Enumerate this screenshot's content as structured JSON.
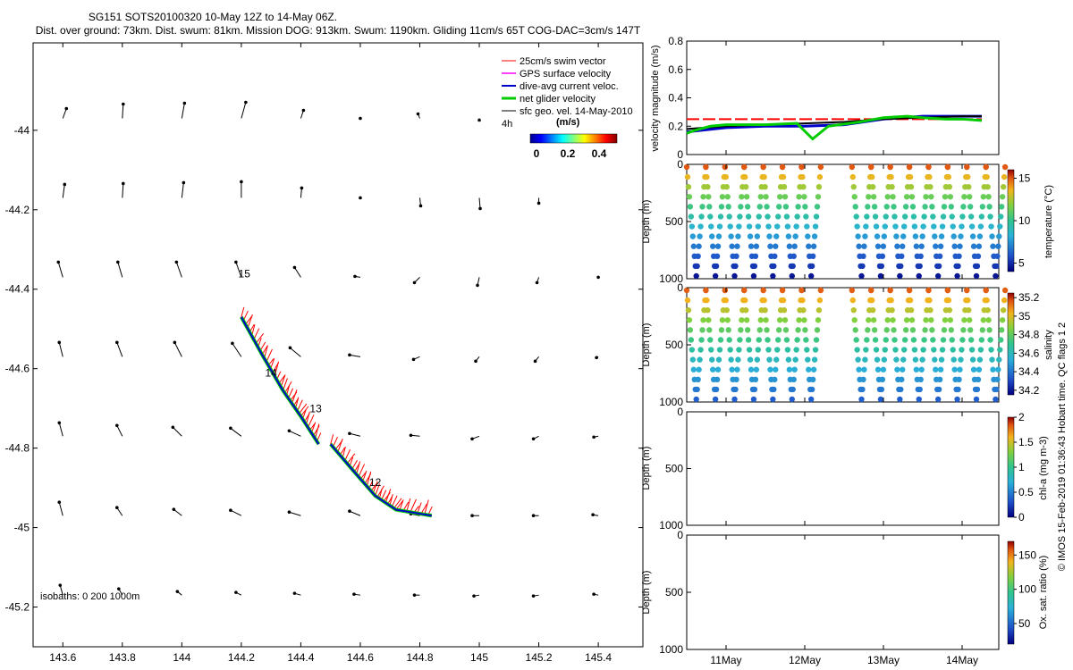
{
  "header": {
    "title_line1": "SG151 SOTS20100320 10-May 12Z to 14-May 06Z.",
    "title_line2": "Dist. over ground: 73km. Dist. swum: 81km. Mission DOG: 913km. Swum: 1190km. Gliding 11cm/s 65T COG-DAC=3cm/s 147T"
  },
  "footer": {
    "credit": "© IMOS 15-Feb-2019 01:36:43 Hobart time. QC flags 1  2"
  },
  "colors": {
    "swim": "#ff0000",
    "gps": "#ff00ff",
    "dac": "#0000cc",
    "net": "#00cc00",
    "sfc": "#000000"
  },
  "chart_data": [
    {
      "name": "map",
      "type": "scatter",
      "xlabel": "",
      "ylabel": "",
      "xlim": [
        143.5,
        145.55
      ],
      "ylim": [
        -45.3,
        -43.78
      ],
      "x_ticks": [
        143.6,
        143.8,
        144,
        144.2,
        144.4,
        144.6,
        144.8,
        145,
        145.2,
        145.4
      ],
      "x_tick_labels": [
        "143.6",
        "143.8",
        "144",
        "144.2",
        "144.4",
        "144.6",
        "144.8",
        "145",
        "145.2",
        "145.4"
      ],
      "y_ticks": [
        -44,
        -44.2,
        -44.4,
        -44.6,
        -44.8,
        -45,
        -45.2
      ],
      "y_tick_labels": [
        "-44",
        "-44.2",
        "-44.4",
        "-44.6",
        "-44.8",
        "-45",
        "-45.2"
      ],
      "legend": [
        "25cm/s swim vector",
        "GPS surface velocity",
        "dive-avg current veloc.",
        "net glider velocity",
        "sfc geo. vel. 14-May-2010"
      ],
      "legend_note": "4h",
      "colorbar_title": "(m/s)",
      "colorbar_ticks": [
        "0",
        "0.2",
        "0.4"
      ],
      "isobaths_label": "isobaths: 0    200   1000m",
      "day_labels": [
        {
          "text": "15",
          "lon": 144.19,
          "lat": -44.37
        },
        {
          "text": "14",
          "lon": 144.28,
          "lat": -44.62
        },
        {
          "text": "13",
          "lon": 144.43,
          "lat": -44.71
        },
        {
          "text": "12",
          "lon": 144.63,
          "lat": -44.895
        }
      ],
      "track_segments": [
        [
          [
            144.2,
            -44.47
          ],
          [
            144.27,
            -44.565
          ],
          [
            144.34,
            -44.655
          ],
          [
            144.4,
            -44.72
          ],
          [
            144.46,
            -44.79
          ]
        ],
        [
          [
            144.5,
            -44.79
          ],
          [
            144.58,
            -44.86
          ],
          [
            144.65,
            -44.92
          ],
          [
            144.72,
            -44.955
          ],
          [
            144.84,
            -44.97
          ]
        ]
      ],
      "current_vectors": [
        {
          "lon": 143.6,
          "lat": -43.97,
          "u": 0.2,
          "v": 0.55
        },
        {
          "lon": 143.8,
          "lat": -43.97,
          "u": 0.05,
          "v": 0.8
        },
        {
          "lon": 144,
          "lat": -43.97,
          "u": 0.15,
          "v": 0.85
        },
        {
          "lon": 144.2,
          "lat": -43.97,
          "u": 0.25,
          "v": 0.9
        },
        {
          "lon": 144.4,
          "lat": -43.97,
          "u": 0.15,
          "v": 0.45
        },
        {
          "lon": 144.6,
          "lat": -43.97,
          "u": 0,
          "v": 0
        },
        {
          "lon": 144.8,
          "lat": -43.97,
          "u": -0.1,
          "v": 0.25
        },
        {
          "lon": 145,
          "lat": -43.97,
          "u": 0,
          "v": -0.1
        },
        {
          "lon": 143.6,
          "lat": -44.17,
          "u": 0.1,
          "v": 0.75
        },
        {
          "lon": 143.8,
          "lat": -44.17,
          "u": 0.05,
          "v": 0.8
        },
        {
          "lon": 144,
          "lat": -44.17,
          "u": 0.1,
          "v": 0.85
        },
        {
          "lon": 144.2,
          "lat": -44.17,
          "u": 0,
          "v": 0.9
        },
        {
          "lon": 144.4,
          "lat": -44.17,
          "u": 0.05,
          "v": 0.55
        },
        {
          "lon": 144.6,
          "lat": -44.17,
          "u": 0,
          "v": 0
        },
        {
          "lon": 144.8,
          "lat": -44.17,
          "u": 0.05,
          "v": -0.45
        },
        {
          "lon": 145,
          "lat": -44.17,
          "u": 0.05,
          "v": -0.6
        },
        {
          "lon": 145.2,
          "lat": -44.17,
          "u": 0,
          "v": -0.3
        },
        {
          "lon": 143.6,
          "lat": -44.37,
          "u": -0.25,
          "v": 0.85
        },
        {
          "lon": 143.8,
          "lat": -44.37,
          "u": -0.25,
          "v": 0.85
        },
        {
          "lon": 144,
          "lat": -44.37,
          "u": -0.3,
          "v": 0.85
        },
        {
          "lon": 144.2,
          "lat": -44.37,
          "u": -0.3,
          "v": 0.85
        },
        {
          "lon": 144.4,
          "lat": -44.37,
          "u": -0.35,
          "v": 0.55
        },
        {
          "lon": 144.6,
          "lat": -44.37,
          "u": -0.3,
          "v": 0.05
        },
        {
          "lon": 144.8,
          "lat": -44.37,
          "u": -0.3,
          "v": -0.3
        },
        {
          "lon": 145,
          "lat": -44.37,
          "u": -0.1,
          "v": -0.45
        },
        {
          "lon": 145.2,
          "lat": -44.37,
          "u": -0.1,
          "v": -0.3
        },
        {
          "lon": 145.4,
          "lat": -44.37,
          "u": 0,
          "v": 0
        },
        {
          "lon": 143.6,
          "lat": -44.57,
          "u": -0.2,
          "v": 0.8
        },
        {
          "lon": 143.8,
          "lat": -44.57,
          "u": -0.3,
          "v": 0.8
        },
        {
          "lon": 144,
          "lat": -44.57,
          "u": -0.4,
          "v": 0.8
        },
        {
          "lon": 144.2,
          "lat": -44.57,
          "u": -0.5,
          "v": 0.75
        },
        {
          "lon": 144.4,
          "lat": -44.57,
          "u": -0.6,
          "v": 0.5
        },
        {
          "lon": 144.6,
          "lat": -44.57,
          "u": -0.6,
          "v": 0.1
        },
        {
          "lon": 144.8,
          "lat": -44.57,
          "u": -0.35,
          "v": -0.15
        },
        {
          "lon": 145,
          "lat": -44.57,
          "u": -0.2,
          "v": -0.25
        },
        {
          "lon": 145.2,
          "lat": -44.57,
          "u": -0.2,
          "v": -0.25
        },
        {
          "lon": 145.4,
          "lat": -44.57,
          "u": -0.1,
          "v": -0.05
        },
        {
          "lon": 143.6,
          "lat": -44.77,
          "u": -0.2,
          "v": 0.75
        },
        {
          "lon": 143.8,
          "lat": -44.77,
          "u": -0.3,
          "v": 0.6
        },
        {
          "lon": 144,
          "lat": -44.77,
          "u": -0.5,
          "v": 0.5
        },
        {
          "lon": 144.2,
          "lat": -44.77,
          "u": -0.6,
          "v": 0.45
        },
        {
          "lon": 144.4,
          "lat": -44.77,
          "u": -0.65,
          "v": 0.3
        },
        {
          "lon": 144.6,
          "lat": -44.77,
          "u": -0.6,
          "v": 0.15
        },
        {
          "lon": 144.8,
          "lat": -44.77,
          "u": -0.5,
          "v": 0.05
        },
        {
          "lon": 145,
          "lat": -44.77,
          "u": -0.4,
          "v": -0.15
        },
        {
          "lon": 145.2,
          "lat": -44.77,
          "u": -0.3,
          "v": -0.15
        },
        {
          "lon": 145.4,
          "lat": -44.77,
          "u": -0.25,
          "v": -0.05
        },
        {
          "lon": 143.6,
          "lat": -44.97,
          "u": -0.2,
          "v": 0.75
        },
        {
          "lon": 143.8,
          "lat": -44.97,
          "u": -0.3,
          "v": 0.45
        },
        {
          "lon": 144,
          "lat": -44.97,
          "u": -0.45,
          "v": 0.35
        },
        {
          "lon": 144.2,
          "lat": -44.97,
          "u": -0.6,
          "v": 0.3
        },
        {
          "lon": 144.4,
          "lat": -44.97,
          "u": -0.65,
          "v": 0.2
        },
        {
          "lon": 144.6,
          "lat": -44.97,
          "u": -0.6,
          "v": 0.25
        },
        {
          "lon": 144.8,
          "lat": -44.97,
          "u": -0.5,
          "v": 0.1
        },
        {
          "lon": 145,
          "lat": -44.97,
          "u": -0.4,
          "v": 0
        },
        {
          "lon": 145.2,
          "lat": -44.97,
          "u": -0.3,
          "v": 0
        },
        {
          "lon": 145.4,
          "lat": -44.97,
          "u": -0.3,
          "v": 0.05
        },
        {
          "lon": 143.6,
          "lat": -45.17,
          "u": -0.15,
          "v": 0.55
        },
        {
          "lon": 143.8,
          "lat": -45.17,
          "u": -0.2,
          "v": 0.35
        },
        {
          "lon": 144,
          "lat": -45.17,
          "u": -0.25,
          "v": 0.2
        },
        {
          "lon": 144.2,
          "lat": -45.17,
          "u": -0.3,
          "v": 0.15
        },
        {
          "lon": 144.4,
          "lat": -45.17,
          "u": -0.35,
          "v": 0.1
        },
        {
          "lon": 144.6,
          "lat": -45.17,
          "u": -0.35,
          "v": 0.05
        },
        {
          "lon": 144.8,
          "lat": -45.17,
          "u": -0.3,
          "v": 0
        },
        {
          "lon": 145,
          "lat": -45.17,
          "u": -0.3,
          "v": -0.05
        },
        {
          "lon": 145.2,
          "lat": -45.17,
          "u": -0.3,
          "v": -0.05
        },
        {
          "lon": 145.4,
          "lat": -45.17,
          "u": -0.25,
          "v": 0.05
        }
      ]
    },
    {
      "name": "velocity",
      "type": "line",
      "xlabel": "",
      "ylabel": "velocity magnitude (m/s)",
      "ylim": [
        0,
        0.8
      ],
      "y_ticks": [
        0,
        0.2,
        0.4,
        0.6,
        0.8
      ],
      "y_tick_labels": [
        "0",
        "0.2",
        "0.4",
        "0.6",
        "0.8"
      ],
      "series": [
        {
          "name": "swim",
          "points": [
            [
              10.5,
              0.25
            ],
            [
              14.25,
              0.25
            ]
          ]
        },
        {
          "name": "dac",
          "points": [
            [
              10.5,
              0.16
            ],
            [
              11,
              0.19
            ],
            [
              11.5,
              0.2
            ],
            [
              12,
              0.2
            ],
            [
              12.5,
              0.21
            ],
            [
              13,
              0.25
            ],
            [
              13.5,
              0.27
            ],
            [
              14,
              0.27
            ],
            [
              14.25,
              0.27
            ]
          ]
        },
        {
          "name": "sfc",
          "points": [
            [
              10.5,
              0.18
            ],
            [
              11,
              0.2
            ],
            [
              11.5,
              0.21
            ],
            [
              12,
              0.22
            ],
            [
              12.5,
              0.23
            ],
            [
              13,
              0.25
            ],
            [
              13.5,
              0.26
            ],
            [
              14,
              0.27
            ],
            [
              14.25,
              0.27
            ]
          ]
        },
        {
          "name": "net",
          "points": [
            [
              10.5,
              0.15
            ],
            [
              10.6,
              0.17
            ],
            [
              10.8,
              0.2
            ],
            [
              11,
              0.21
            ],
            [
              11.5,
              0.21
            ],
            [
              11.9,
              0.22
            ],
            [
              12.1,
              0.11
            ],
            [
              12.3,
              0.2
            ],
            [
              12.7,
              0.23
            ],
            [
              13,
              0.26
            ],
            [
              13.3,
              0.27
            ],
            [
              13.5,
              0.26
            ],
            [
              13.8,
              0.25
            ],
            [
              14,
              0.25
            ],
            [
              14.25,
              0.24
            ]
          ]
        }
      ]
    },
    {
      "name": "temperature",
      "type": "scatter",
      "ylabel": "Depth (m)",
      "colorbar_label": "temperature (°C)",
      "ylim": [
        1000,
        0
      ],
      "y_tick_labels": [
        "0",
        "500",
        "1000"
      ],
      "colorbar_range": [
        4,
        16
      ],
      "colorbar_ticks": [
        "5",
        "10",
        "15"
      ],
      "dives_start": 10.5,
      "dives_end": 14.25,
      "gap": [
        12.5,
        12.6
      ],
      "n_dives": 15,
      "surface_value": 15,
      "deep_value": 4.5
    },
    {
      "name": "salinity",
      "type": "scatter",
      "ylabel": "Depth (m)",
      "colorbar_label": "salinity",
      "ylim": [
        1000,
        0
      ],
      "y_tick_labels": [
        "0",
        "500",
        "1000"
      ],
      "colorbar_range": [
        34.15,
        35.25
      ],
      "colorbar_ticks": [
        "34.2",
        "34.4",
        "34.6",
        "34.8",
        "35",
        "35.2"
      ],
      "dives_start": 10.5,
      "dives_end": 14.25,
      "gap": [
        12.5,
        12.6
      ],
      "n_dives": 15,
      "surface_value": 35.15,
      "deep_value": 34.35
    },
    {
      "name": "chla",
      "type": "scatter",
      "ylabel": "Depth (m)",
      "colorbar_label": "chl-a (mg m-3)",
      "ylim": [
        1000,
        0
      ],
      "y_tick_labels": [
        "0",
        "500",
        "1000"
      ],
      "colorbar_range": [
        0,
        2
      ],
      "colorbar_ticks": [
        "0",
        "0.5",
        "1",
        "1.5",
        "2"
      ]
    },
    {
      "name": "oxygen",
      "type": "scatter",
      "ylabel": "Depth (m)",
      "colorbar_label": "Ox. sat. ratio (%)",
      "ylim": [
        1000,
        0
      ],
      "y_tick_labels": [
        "0",
        "500",
        "1000"
      ],
      "colorbar_range": [
        20,
        170
      ],
      "colorbar_ticks": [
        "50",
        "100",
        "150"
      ],
      "x_ticks": [
        11,
        12,
        13,
        14
      ],
      "x_tick_labels": [
        "11May",
        "12May",
        "13May",
        "14May"
      ]
    }
  ]
}
